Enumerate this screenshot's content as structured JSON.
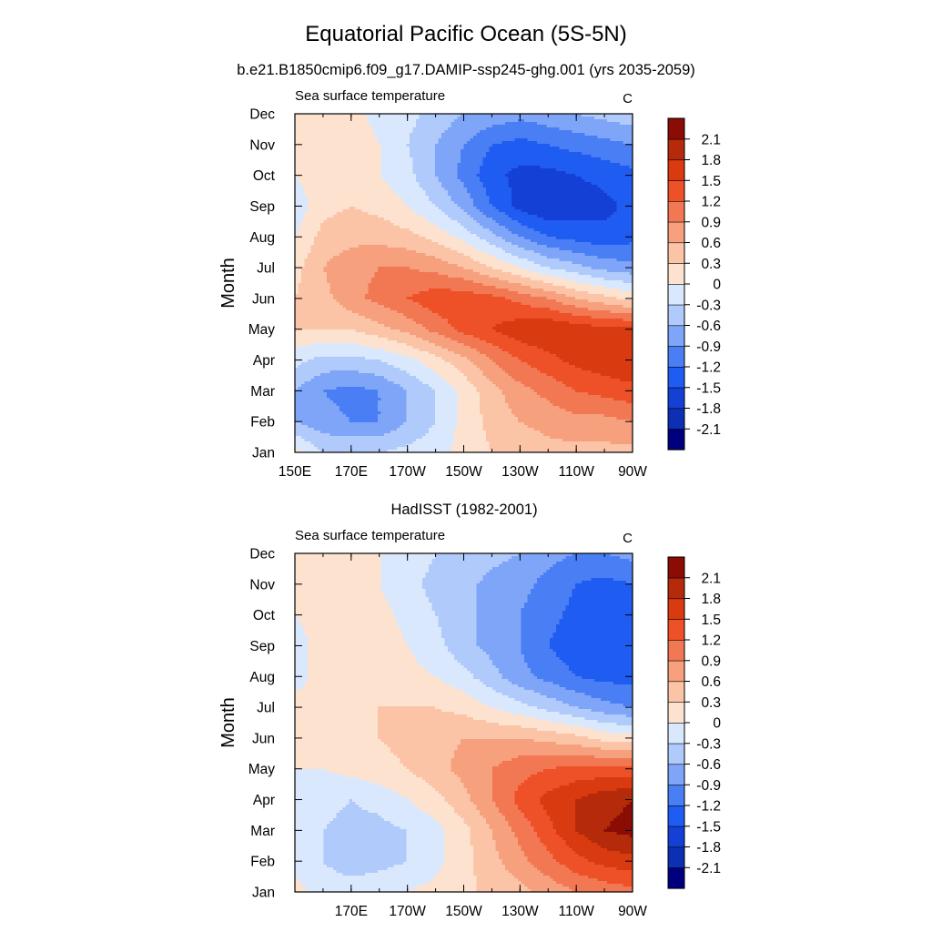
{
  "figure": {
    "title": "Equatorial Pacific Ocean (5S-5N)"
  },
  "colorbar": {
    "colors": [
      "#00007f",
      "#0c2fb3",
      "#1440d6",
      "#1f5cf2",
      "#4a7ef5",
      "#7fa5f8",
      "#b0cafb",
      "#d9e8fd",
      "#fde3cf",
      "#fbc4a6",
      "#f7a07d",
      "#f27753",
      "#ee5028",
      "#d93a10",
      "#b52a0a",
      "#8a0c05"
    ],
    "labels": [
      "-2.1",
      "-1.8",
      "-1.5",
      "-1.2",
      "-0.9",
      "-0.6",
      "-0.3",
      "0",
      "0.3",
      "0.6",
      "0.9",
      "1.2",
      "1.5",
      "1.8",
      "2.1"
    ]
  },
  "chart_data": [
    {
      "type": "heatmap",
      "title": "b.e21.B1850cmip6.f09_g17.DAMIP-ssp245-ghg.001 (yrs 2035-2059)",
      "left_string": "Sea surface temperature",
      "right_string": "C",
      "ylabel": "Month",
      "xlabel": "",
      "x_ticks": [
        "150E",
        "170E",
        "170W",
        "150W",
        "130W",
        "110W",
        "90W"
      ],
      "y_ticks": [
        "Jan",
        "Feb",
        "Mar",
        "Apr",
        "May",
        "Jun",
        "Jul",
        "Aug",
        "Sep",
        "Oct",
        "Nov",
        "Dec"
      ],
      "x_values_deg_east": [
        150,
        160,
        170,
        180,
        190,
        200,
        210,
        220,
        230,
        240,
        250,
        260,
        270
      ],
      "y": [
        "Jan",
        "Feb",
        "Mar",
        "Apr",
        "May",
        "Jun",
        "Jul",
        "Aug",
        "Sep",
        "Oct",
        "Nov",
        "Dec"
      ],
      "z": [
        [
          0.1,
          -0.3,
          -0.3,
          -0.3,
          -0.2,
          -0.1,
          0.1,
          0.3,
          0.4,
          0.5,
          0.5,
          0.5,
          0.5
        ],
        [
          -0.6,
          -0.8,
          -0.9,
          -0.9,
          -0.6,
          -0.3,
          0.1,
          0.4,
          0.6,
          0.7,
          0.8,
          0.8,
          0.9
        ],
        [
          -0.6,
          -0.9,
          -1.0,
          -0.9,
          -0.6,
          -0.3,
          0.1,
          0.5,
          0.8,
          1.0,
          1.2,
          1.3,
          1.4
        ],
        [
          -0.2,
          -0.4,
          -0.4,
          -0.3,
          -0.1,
          0.2,
          0.5,
          0.9,
          1.2,
          1.4,
          1.6,
          1.7,
          1.8
        ],
        [
          0.3,
          0.3,
          0.3,
          0.5,
          0.7,
          1.0,
          1.3,
          1.5,
          1.7,
          1.8,
          1.7,
          1.6,
          1.6
        ],
        [
          0.3,
          0.5,
          0.8,
          1.0,
          1.2,
          1.4,
          1.4,
          1.3,
          1.1,
          0.9,
          0.6,
          0.4,
          0.2
        ],
        [
          0.2,
          0.6,
          0.8,
          0.9,
          0.9,
          0.8,
          0.6,
          0.3,
          0.0,
          -0.3,
          -0.5,
          -0.7,
          -0.8
        ],
        [
          0.0,
          0.4,
          0.5,
          0.5,
          0.4,
          0.2,
          -0.1,
          -0.5,
          -0.9,
          -1.2,
          -1.3,
          -1.4,
          -1.3
        ],
        [
          -0.2,
          0.2,
          0.3,
          0.2,
          0.0,
          -0.3,
          -0.7,
          -1.2,
          -1.6,
          -1.8,
          -1.7,
          -1.6,
          -1.4
        ],
        [
          0.0,
          0.2,
          0.2,
          0.0,
          -0.2,
          -0.6,
          -1.0,
          -1.4,
          -1.6,
          -1.6,
          -1.5,
          -1.4,
          -1.3
        ],
        [
          0.1,
          0.2,
          0.2,
          0.0,
          -0.3,
          -0.6,
          -0.9,
          -1.2,
          -1.3,
          -1.2,
          -1.1,
          -1.0,
          -0.9
        ],
        [
          0.1,
          0.2,
          0.1,
          -0.1,
          -0.2,
          -0.4,
          -0.6,
          -0.7,
          -0.8,
          -0.7,
          -0.6,
          -0.5,
          -0.4
        ]
      ],
      "color_levels": [
        -2.1,
        -1.8,
        -1.5,
        -1.2,
        -0.9,
        -0.6,
        -0.3,
        0,
        0.3,
        0.6,
        0.9,
        1.2,
        1.5,
        1.8,
        2.1
      ]
    },
    {
      "type": "heatmap",
      "title": "HadISST (1982-2001)",
      "left_string": "Sea surface temperature",
      "right_string": "C",
      "ylabel": "Month",
      "xlabel": "",
      "x_ticks": [
        "170E",
        "170W",
        "150W",
        "130W",
        "110W",
        "90W"
      ],
      "y_ticks": [
        "Jan",
        "Feb",
        "Mar",
        "Apr",
        "May",
        "Jun",
        "Jul",
        "Aug",
        "Sep",
        "Oct",
        "Nov",
        "Dec"
      ],
      "x_values_deg_east": [
        150,
        160,
        170,
        180,
        190,
        200,
        210,
        220,
        230,
        240,
        250,
        260,
        270
      ],
      "y": [
        "Jan",
        "Feb",
        "Mar",
        "Apr",
        "May",
        "Jun",
        "Jul",
        "Aug",
        "Sep",
        "Oct",
        "Nov",
        "Dec"
      ],
      "z": [
        [
          0.1,
          -0.1,
          -0.1,
          -0.1,
          0.0,
          0.1,
          0.2,
          0.4,
          0.5,
          0.7,
          0.9,
          1.0,
          1.1
        ],
        [
          -0.1,
          -0.3,
          -0.5,
          -0.4,
          -0.3,
          -0.1,
          0.2,
          0.5,
          0.8,
          1.1,
          1.4,
          1.6,
          1.7
        ],
        [
          -0.1,
          -0.3,
          -0.4,
          -0.4,
          -0.3,
          -0.1,
          0.2,
          0.6,
          1.0,
          1.4,
          1.8,
          2.1,
          2.2
        ],
        [
          -0.1,
          -0.2,
          -0.3,
          -0.2,
          0.0,
          0.2,
          0.5,
          0.9,
          1.3,
          1.6,
          1.8,
          2.0,
          2.1
        ],
        [
          0.0,
          0.0,
          0.1,
          0.2,
          0.3,
          0.5,
          0.7,
          0.9,
          1.1,
          1.2,
          1.3,
          1.3,
          1.3
        ],
        [
          0.1,
          0.1,
          0.2,
          0.3,
          0.4,
          0.5,
          0.6,
          0.6,
          0.6,
          0.5,
          0.4,
          0.2,
          0.1
        ],
        [
          0.1,
          0.1,
          0.2,
          0.3,
          0.3,
          0.3,
          0.2,
          0.0,
          -0.2,
          -0.4,
          -0.6,
          -0.8,
          -0.9
        ],
        [
          -0.1,
          0.1,
          0.2,
          0.2,
          0.1,
          0.0,
          -0.2,
          -0.5,
          -0.8,
          -1.0,
          -1.2,
          -1.3,
          -1.3
        ],
        [
          -0.1,
          0.1,
          0.3,
          0.2,
          0.0,
          -0.2,
          -0.5,
          -0.7,
          -0.9,
          -1.2,
          -1.4,
          -1.5,
          -1.5
        ],
        [
          0.0,
          0.1,
          0.2,
          0.1,
          -0.1,
          -0.3,
          -0.5,
          -0.7,
          -0.9,
          -1.1,
          -1.3,
          -1.4,
          -1.4
        ],
        [
          0.1,
          0.1,
          0.1,
          0.0,
          -0.2,
          -0.4,
          -0.5,
          -0.7,
          -0.8,
          -1.0,
          -1.2,
          -1.3,
          -1.2
        ],
        [
          0.1,
          0.1,
          0.1,
          0.0,
          -0.1,
          -0.3,
          -0.4,
          -0.5,
          -0.6,
          -0.8,
          -0.9,
          -0.9,
          -0.8
        ]
      ],
      "color_levels": [
        -2.1,
        -1.8,
        -1.5,
        -1.2,
        -0.9,
        -0.6,
        -0.3,
        0,
        0.3,
        0.6,
        0.9,
        1.2,
        1.5,
        1.8,
        2.1
      ]
    }
  ]
}
